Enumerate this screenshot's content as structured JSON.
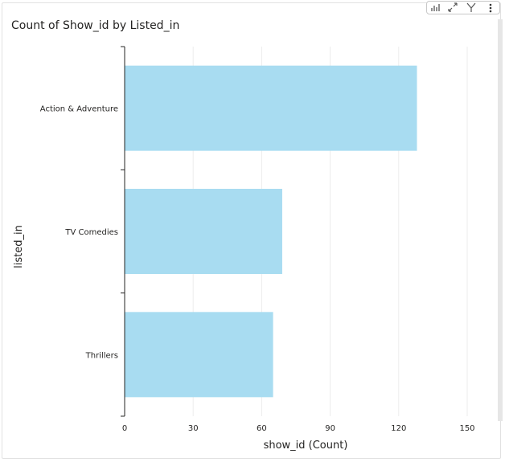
{
  "visual": {
    "title": "Count of Show_id by Listed_in",
    "toolbar_icons": [
      "pin-visual-icon",
      "focus-mode-icon",
      "filter-icon",
      "more-options-icon"
    ]
  },
  "chart_data": {
    "type": "bar",
    "orientation": "horizontal",
    "title": "Count of Show_id by Listed_in",
    "xlabel": "show_id (Count)",
    "ylabel": "listed_in",
    "categories": [
      "Action & Adventure",
      "TV Comedies",
      "Thrillers"
    ],
    "values": [
      128,
      69,
      65
    ],
    "xlim": [
      0,
      150
    ],
    "xticks": [
      0,
      30,
      60,
      90,
      120,
      150
    ],
    "grid": "vertical",
    "bar_color": "#a8dcf1"
  }
}
